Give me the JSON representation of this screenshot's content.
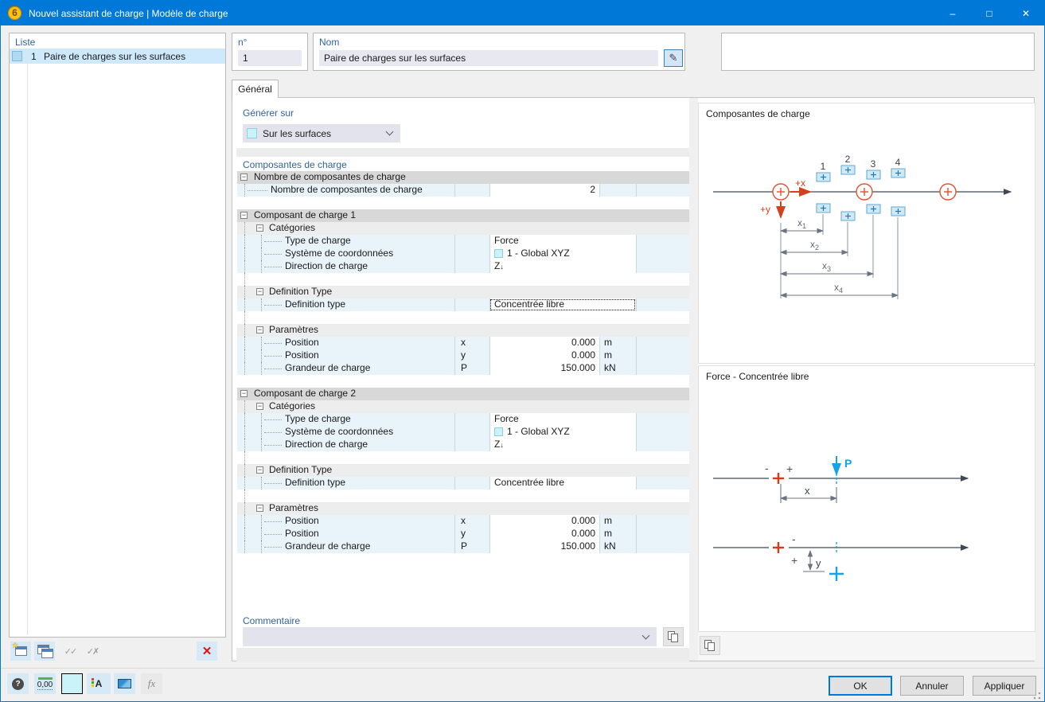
{
  "titlebar": {
    "title": "Nouvel assistant de charge | Modèle de charge",
    "app_icon_text": "6",
    "minimize_glyph": "–",
    "maximize_glyph": "□",
    "close_glyph": "✕"
  },
  "list_panel": {
    "header": "Liste",
    "items": [
      {
        "number": "1",
        "label": "Paire de charges sur les surfaces",
        "selected": true
      }
    ]
  },
  "header_fields": {
    "number_label": "n°",
    "number_value": "1",
    "name_label": "Nom",
    "name_value": "Paire de charges sur les surfaces",
    "edit_icon_glyph": "✎"
  },
  "tabs": [
    {
      "label": "Général",
      "active": true
    }
  ],
  "form": {
    "generate_on_label": "Générer sur",
    "generate_on_value": "Sur les surfaces",
    "components_label": "Composantes de charge",
    "comment_label": "Commentaire",
    "comment_value": ""
  },
  "table": {
    "rows": [
      {
        "t": "group",
        "label": "Nombre de composantes de charge"
      },
      {
        "t": "data",
        "level": 1,
        "label": "Nombre de composantes de charge",
        "sym": "",
        "val": "2",
        "unit": "",
        "numeric": true
      },
      {
        "t": "blank"
      },
      {
        "t": "group",
        "label": "Composant de charge 1"
      },
      {
        "t": "sub",
        "label": "Catégories"
      },
      {
        "t": "data",
        "level": 2,
        "label": "Type de charge",
        "val": "Force",
        "wide": true
      },
      {
        "t": "data",
        "level": 2,
        "label": "Système de coordonnées",
        "val": "1 - Global XYZ",
        "swatch": true,
        "wide": true
      },
      {
        "t": "data",
        "level": 2,
        "label": "Direction de charge",
        "val": "Z",
        "val_sub": "↓",
        "wide": true
      },
      {
        "t": "blank",
        "g": true
      },
      {
        "t": "sub",
        "label": "Definition Type"
      },
      {
        "t": "data",
        "level": 2,
        "label": "Definition type",
        "val": "Concentrée libre",
        "wide": true,
        "focus": true
      },
      {
        "t": "blank",
        "g": true
      },
      {
        "t": "sub",
        "label": "Paramètres"
      },
      {
        "t": "data",
        "level": 2,
        "label": "Position",
        "sym": "x",
        "val": "0.000",
        "unit": "m",
        "numeric": true
      },
      {
        "t": "data",
        "level": 2,
        "label": "Position",
        "sym": "y",
        "val": "0.000",
        "unit": "m",
        "numeric": true
      },
      {
        "t": "data",
        "level": 2,
        "label": "Grandeur de charge",
        "sym": "P",
        "val": "150.000",
        "unit": "kN",
        "numeric": true
      },
      {
        "t": "blank"
      },
      {
        "t": "group",
        "label": "Composant de charge 2"
      },
      {
        "t": "sub",
        "label": "Catégories"
      },
      {
        "t": "data",
        "level": 2,
        "label": "Type de charge",
        "val": "Force",
        "wide": true
      },
      {
        "t": "data",
        "level": 2,
        "label": "Système de coordonnées",
        "val": "1 - Global XYZ",
        "swatch": true,
        "wide": true
      },
      {
        "t": "data",
        "level": 2,
        "label": "Direction de charge",
        "val": "Z",
        "val_sub": "↓",
        "wide": true
      },
      {
        "t": "blank",
        "g": true
      },
      {
        "t": "sub",
        "label": "Definition Type"
      },
      {
        "t": "data",
        "level": 2,
        "label": "Definition type",
        "val": "Concentrée libre",
        "wide": true
      },
      {
        "t": "blank",
        "g": true
      },
      {
        "t": "sub",
        "label": "Paramètres"
      },
      {
        "t": "data",
        "level": 2,
        "label": "Position",
        "sym": "x",
        "val": "0.000",
        "unit": "m",
        "numeric": true
      },
      {
        "t": "data",
        "level": 2,
        "label": "Position",
        "sym": "y",
        "val": "0.000",
        "unit": "m",
        "numeric": true
      },
      {
        "t": "data",
        "level": 2,
        "label": "Grandeur de charge",
        "sym": "P",
        "val": "150.000",
        "unit": "kN",
        "numeric": true
      }
    ]
  },
  "diagrams": {
    "components": {
      "title": "Composantes de charge",
      "x_axis_label": "+x",
      "y_axis_label": "+y",
      "numbers": [
        "1",
        "2",
        "3",
        "4"
      ],
      "dims": [
        {
          "base": "x",
          "sub": "1"
        },
        {
          "base": "x",
          "sub": "2"
        },
        {
          "base": "x",
          "sub": "3"
        },
        {
          "base": "x",
          "sub": "4"
        }
      ]
    },
    "force": {
      "title": "Force - Concentrée libre",
      "load_label": "P",
      "dim_x": {
        "base": "x",
        "sub": ""
      },
      "dim_y": {
        "base": "y",
        "sub": ""
      },
      "sign_plus": "+",
      "sign_minus": "-"
    }
  },
  "footer": {
    "ok": "OK",
    "cancel": "Annuler",
    "apply": "Appliquer",
    "help_glyph": "?",
    "decimal_icon_label": "0,00",
    "fx_icon_label": "fx",
    "display_icon_letter": "A"
  },
  "icons": {
    "expander_glyph": "−",
    "new_item_star": "★",
    "check_all_glyph": "✓✓",
    "uncheck_glyph": "✓✗",
    "delete_glyph": "✕"
  },
  "colors": {
    "titlebar": "#0078d7",
    "selection": "#cde9fb",
    "table_row_blue": "#e9f3fa",
    "group_header_gray": "#d8d8d8",
    "swatch_cyan": "#c9f2f9",
    "diagram_red": "#d4411f",
    "diagram_blue": "#17a2e5",
    "label_blue": "#31639c"
  }
}
